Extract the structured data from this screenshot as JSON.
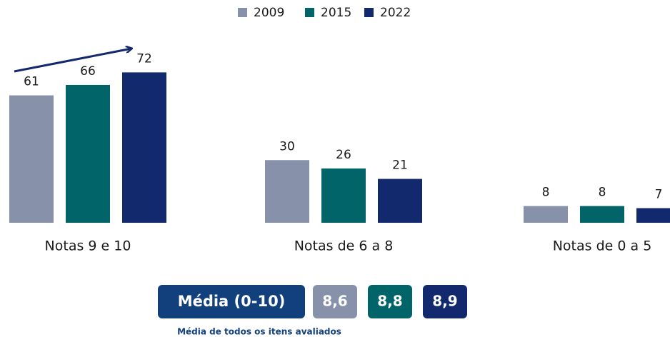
{
  "chart_data": {
    "type": "bar",
    "categories": [
      "Notas 9 e 10",
      "Notas de 6 a 8",
      "Notas de 0 a 5"
    ],
    "series": [
      {
        "name": "2009",
        "color": "#8891aa",
        "values": [
          61,
          30,
          8
        ]
      },
      {
        "name": "2015",
        "color": "#006468",
        "values": [
          66,
          26,
          8
        ]
      },
      {
        "name": "2022",
        "color": "#13296d",
        "values": [
          72,
          21,
          7
        ]
      }
    ],
    "ylim": [
      0,
      80
    ],
    "average": {
      "label": "Média (0-10)",
      "color": "#12407d",
      "values": [
        8.6,
        8.8,
        8.9
      ],
      "value_labels": [
        "8,6",
        "8,8",
        "8,9"
      ],
      "note": "Média de todos os itens avaliados"
    }
  }
}
